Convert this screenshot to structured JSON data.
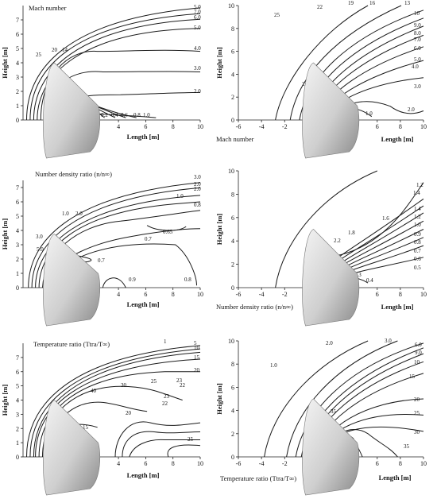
{
  "chart_data": [
    {
      "id": "p1",
      "type": "contour",
      "title": "Mach number",
      "xlabel": "Length [m]",
      "ylabel": "Height [m]",
      "xlim": [
        -3,
        10
      ],
      "ylim": [
        0,
        8
      ],
      "xticks": [
        "0",
        "2",
        "4",
        "6",
        "8",
        "10"
      ],
      "yticks": [
        "0",
        "1",
        "2",
        "3",
        "4",
        "5",
        "6",
        "7"
      ],
      "contour_labels": [
        "5.0",
        "7.0",
        "6.0",
        "5.0",
        "4.0",
        "3.0",
        "2.0",
        "25",
        "20",
        "14",
        "1.0",
        "0.2",
        "0.4",
        "0.6",
        "0.8",
        "1.0"
      ]
    },
    {
      "id": "p2",
      "type": "contour",
      "title": "Mach number",
      "xlabel": "Length [m]",
      "ylabel": "Height [m]",
      "xlim": [
        -6,
        10
      ],
      "ylim": [
        0,
        10
      ],
      "xticks": [
        "-6",
        "-4",
        "-2",
        "0",
        "2",
        "4",
        "6",
        "8",
        "10"
      ],
      "yticks": [
        "0",
        "2",
        "4",
        "6",
        "8",
        "10"
      ],
      "contour_labels": [
        "25",
        "22",
        "19",
        "16",
        "13",
        "10",
        "9.0",
        "8.0",
        "7.0",
        "6.0",
        "5.0",
        "4.0",
        "3.0",
        "2.0",
        "1.0",
        "2.0",
        "1.0",
        "0.5"
      ]
    },
    {
      "id": "p3",
      "type": "contour",
      "title": "Number density ratio (n/n∞)",
      "xlabel": "Length [m]",
      "ylabel": "Height [m]",
      "xlim": [
        -3,
        10
      ],
      "ylim": [
        0,
        7.5
      ],
      "xticks": [
        "0",
        "2",
        "4",
        "6",
        "8",
        "10"
      ],
      "yticks": [
        "0",
        "1",
        "2",
        "3",
        "4",
        "5",
        "6",
        "7"
      ],
      "contour_labels": [
        "3.0",
        "2.0",
        "2.0",
        "1.0",
        "0.8",
        "1.0",
        "2.0",
        "0.65",
        "0.7",
        "3.0",
        "5.0",
        "0.7",
        "0.9",
        "0.9",
        "0.8"
      ]
    },
    {
      "id": "p4",
      "type": "contour",
      "title": "Number density ratio (n/n∞)",
      "xlabel": "Length [m]",
      "ylabel": "Height [m]",
      "xlim": [
        -6,
        10
      ],
      "ylim": [
        0,
        10
      ],
      "xticks": [
        "-6",
        "-4",
        "-2",
        "0",
        "2",
        "4",
        "6",
        "8",
        "10"
      ],
      "yticks": [
        "0",
        "2",
        "4",
        "6",
        "8",
        "10"
      ],
      "contour_labels": [
        "1.2",
        "1.4",
        "1.4",
        "1.2",
        "1.0",
        "0.9",
        "0.8",
        "0.7",
        "0.6",
        "0.5",
        "1.6",
        "1.8",
        "2.2",
        "1.0",
        "0.4",
        "0.3"
      ]
    },
    {
      "id": "p5",
      "type": "contour",
      "title": "Temperature ratio (Ttra/T∞)",
      "xlabel": "Length [m]",
      "ylabel": "Height [m]",
      "xlim": [
        -3,
        10
      ],
      "ylim": [
        0,
        8
      ],
      "xticks": [
        "0",
        "2",
        "4",
        "6",
        "8",
        "10"
      ],
      "yticks": [
        "0",
        "1",
        "2",
        "3",
        "4",
        "5",
        "6",
        "7"
      ],
      "contour_labels": [
        "1",
        "5",
        "10",
        "15",
        "20",
        "22",
        "23",
        "30",
        "40",
        "25",
        "23",
        "22",
        "20",
        "15",
        "25"
      ]
    },
    {
      "id": "p6",
      "type": "contour",
      "title": "Temperature ratio (Ttra/T∞)",
      "xlabel": "Length [m]",
      "ylabel": "Height [m]",
      "xlim": [
        -6,
        10
      ],
      "ylim": [
        0,
        10
      ],
      "xticks": [
        "-6",
        "-4",
        "-2",
        "0",
        "2",
        "4",
        "6",
        "8",
        "10"
      ],
      "yticks": [
        "0",
        "2",
        "4",
        "6",
        "8",
        "10"
      ],
      "contour_labels": [
        "1.0",
        "2.0",
        "3.0",
        "6.0",
        "9.0",
        "10",
        "15",
        "20",
        "25",
        "30",
        "35",
        "30",
        "35",
        "40"
      ]
    }
  ]
}
